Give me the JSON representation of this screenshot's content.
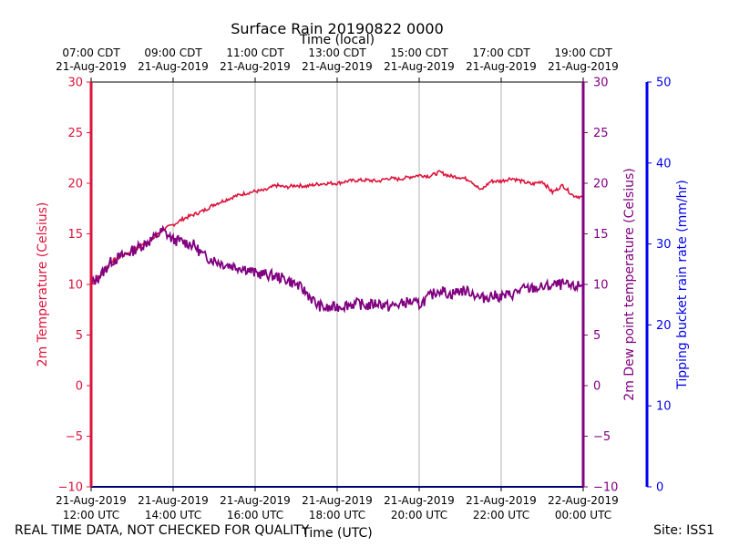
{
  "title": "Surface Rain 20190822 0000",
  "top_axis_label": "Time (local)",
  "bottom_axis_label": "Time (UTC)",
  "footer_note": "REAL TIME DATA, NOT CHECKED FOR QUALITY",
  "site_label": "Site: ISS1",
  "colors": {
    "temperature": "#dc143c",
    "dewpoint": "#800080",
    "rain": "#0000ee",
    "grid": "#b0b0b0"
  },
  "chart_data": {
    "type": "line",
    "title": "Surface Rain 20190822 0000",
    "x_hours_utc_range": [
      12,
      24
    ],
    "bottom_ticks": [
      {
        "hour": 12,
        "line1": "21-Aug-2019",
        "line2": "12:00 UTC"
      },
      {
        "hour": 14,
        "line1": "21-Aug-2019",
        "line2": "14:00 UTC"
      },
      {
        "hour": 16,
        "line1": "21-Aug-2019",
        "line2": "16:00 UTC"
      },
      {
        "hour": 18,
        "line1": "21-Aug-2019",
        "line2": "18:00 UTC"
      },
      {
        "hour": 20,
        "line1": "21-Aug-2019",
        "line2": "20:00 UTC"
      },
      {
        "hour": 22,
        "line1": "21-Aug-2019",
        "line2": "22:00 UTC"
      },
      {
        "hour": 24,
        "line1": "22-Aug-2019",
        "line2": "00:00 UTC"
      }
    ],
    "top_ticks": [
      {
        "hour": 12,
        "line1": "07:00 CDT",
        "line2": "21-Aug-2019"
      },
      {
        "hour": 14,
        "line1": "09:00 CDT",
        "line2": "21-Aug-2019"
      },
      {
        "hour": 16,
        "line1": "11:00 CDT",
        "line2": "21-Aug-2019"
      },
      {
        "hour": 18,
        "line1": "13:00 CDT",
        "line2": "21-Aug-2019"
      },
      {
        "hour": 20,
        "line1": "15:00 CDT",
        "line2": "21-Aug-2019"
      },
      {
        "hour": 22,
        "line1": "17:00 CDT",
        "line2": "21-Aug-2019"
      },
      {
        "hour": 24,
        "line1": "19:00 CDT",
        "line2": "21-Aug-2019"
      }
    ],
    "y_left": {
      "label": "2m Temperature (Celsius)",
      "range": [
        -10,
        30
      ],
      "ticks": [
        -10,
        -5,
        0,
        5,
        10,
        15,
        20,
        25,
        30
      ]
    },
    "y_right1": {
      "label": "2m Dew point temperature (Celsius)",
      "range": [
        -10,
        30
      ],
      "ticks": [
        -10,
        -5,
        0,
        5,
        10,
        15,
        20,
        25,
        30
      ]
    },
    "y_right2": {
      "label": "Tipping bucket rain rate (mm/hr)",
      "range": [
        0,
        50
      ],
      "ticks": [
        0,
        10,
        20,
        30,
        40,
        50
      ]
    },
    "series": [
      {
        "name": "2m Temperature",
        "axis": "left",
        "x": [
          12.0,
          12.25,
          12.5,
          12.75,
          13.0,
          13.25,
          13.5,
          13.75,
          14.0,
          14.25,
          14.5,
          14.75,
          15.0,
          15.25,
          15.5,
          15.75,
          16.0,
          16.25,
          16.5,
          16.75,
          17.0,
          17.25,
          17.5,
          17.75,
          18.0,
          18.25,
          18.5,
          18.75,
          19.0,
          19.25,
          19.5,
          19.75,
          20.0,
          20.25,
          20.5,
          20.75,
          21.0,
          21.25,
          21.5,
          21.75,
          22.0,
          22.25,
          22.5,
          22.75,
          23.0,
          23.25,
          23.5,
          23.75,
          24.0
        ],
        "values": [
          10.0,
          11.0,
          12.3,
          12.8,
          13.3,
          13.9,
          14.5,
          15.4,
          15.9,
          16.5,
          16.9,
          17.3,
          17.9,
          18.3,
          18.7,
          19.0,
          19.2,
          19.3,
          19.8,
          19.6,
          19.8,
          19.7,
          19.9,
          20.0,
          20.0,
          20.2,
          20.3,
          20.3,
          20.2,
          20.5,
          20.4,
          20.6,
          20.8,
          20.7,
          21.1,
          20.7,
          20.6,
          20.3,
          19.3,
          20.2,
          20.2,
          20.5,
          20.2,
          19.9,
          20.2,
          19.1,
          19.8,
          18.8,
          18.6
        ]
      },
      {
        "name": "2m Dew point temperature",
        "axis": "right1",
        "x": [
          12.0,
          12.25,
          12.5,
          12.75,
          13.0,
          13.25,
          13.5,
          13.75,
          14.0,
          14.25,
          14.5,
          14.75,
          15.0,
          15.25,
          15.5,
          15.75,
          16.0,
          16.25,
          16.5,
          16.75,
          17.0,
          17.25,
          17.5,
          17.75,
          18.0,
          18.25,
          18.5,
          18.75,
          19.0,
          19.25,
          19.5,
          19.75,
          20.0,
          20.25,
          20.5,
          20.75,
          21.0,
          21.25,
          21.5,
          21.75,
          22.0,
          22.25,
          22.5,
          22.75,
          23.0,
          23.25,
          23.5,
          23.75,
          24.0
        ],
        "values": [
          10.0,
          11.0,
          12.3,
          12.8,
          13.3,
          13.9,
          14.5,
          15.3,
          14.4,
          14.2,
          13.9,
          12.8,
          12.4,
          12.0,
          11.8,
          11.6,
          11.1,
          11.0,
          10.8,
          10.5,
          10.0,
          9.2,
          8.0,
          7.6,
          7.8,
          8.0,
          8.1,
          7.9,
          8.2,
          7.8,
          8.0,
          8.3,
          8.0,
          8.8,
          9.5,
          9.0,
          9.4,
          9.3,
          8.6,
          8.9,
          8.8,
          9.0,
          9.5,
          9.6,
          9.7,
          9.9,
          10.0,
          9.7,
          10.0
        ]
      },
      {
        "name": "Tipping bucket rain rate",
        "axis": "right2",
        "x": [
          12.0,
          24.0
        ],
        "values": [
          0,
          0
        ]
      }
    ]
  }
}
